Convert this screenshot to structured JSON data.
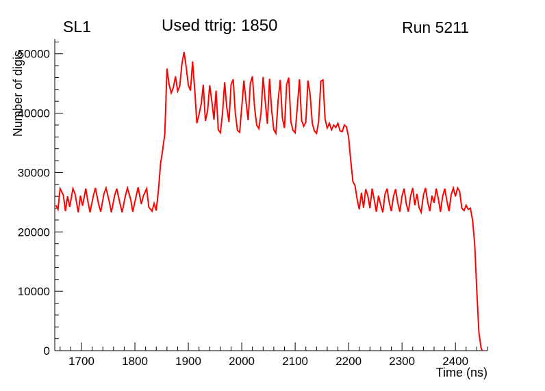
{
  "page": {
    "background": "#ffffff"
  },
  "header": {
    "left_label": "SL1",
    "center_label": "Used ttrig: 1850",
    "right_label": "Run 5211"
  },
  "chart_data": {
    "type": "line",
    "title": "Used ttrig: 1850",
    "xlabel": "Time (ns)",
    "ylabel": "Number of digis",
    "xlim": [
      1650,
      2460
    ],
    "ylim": [
      0,
      52500
    ],
    "x_major_ticks": [
      1700,
      1800,
      1900,
      2000,
      2100,
      2200,
      2300,
      2400
    ],
    "y_major_ticks": [
      0,
      10000,
      20000,
      30000,
      40000,
      50000
    ],
    "x_minor_step": 20,
    "y_minor_step": 2000,
    "grid": false,
    "legend": "none",
    "line_color": "#ff0000",
    "series": [
      {
        "name": "number-of-digis-vs-time",
        "points": [
          [
            1652,
            24500
          ],
          [
            1656,
            23800
          ],
          [
            1660,
            27300
          ],
          [
            1666,
            26200
          ],
          [
            1670,
            23500
          ],
          [
            1674,
            26000
          ],
          [
            1678,
            24200
          ],
          [
            1684,
            27300
          ],
          [
            1688,
            26400
          ],
          [
            1694,
            23300
          ],
          [
            1698,
            26100
          ],
          [
            1702,
            24400
          ],
          [
            1708,
            27300
          ],
          [
            1712,
            25100
          ],
          [
            1716,
            23300
          ],
          [
            1722,
            26000
          ],
          [
            1726,
            27400
          ],
          [
            1732,
            24700
          ],
          [
            1736,
            23400
          ],
          [
            1742,
            26400
          ],
          [
            1746,
            27400
          ],
          [
            1752,
            25100
          ],
          [
            1756,
            23300
          ],
          [
            1762,
            26100
          ],
          [
            1766,
            27300
          ],
          [
            1772,
            24800
          ],
          [
            1776,
            23300
          ],
          [
            1782,
            26000
          ],
          [
            1786,
            27400
          ],
          [
            1792,
            25500
          ],
          [
            1796,
            23400
          ],
          [
            1802,
            25900
          ],
          [
            1806,
            27500
          ],
          [
            1812,
            24700
          ],
          [
            1816,
            26100
          ],
          [
            1822,
            27300
          ],
          [
            1826,
            24200
          ],
          [
            1832,
            23500
          ],
          [
            1836,
            24800
          ],
          [
            1840,
            23600
          ],
          [
            1844,
            27000
          ],
          [
            1848,
            31500
          ],
          [
            1852,
            33800
          ],
          [
            1856,
            36500
          ],
          [
            1860,
            47500
          ],
          [
            1864,
            44800
          ],
          [
            1868,
            43400
          ],
          [
            1872,
            44300
          ],
          [
            1876,
            46200
          ],
          [
            1880,
            43700
          ],
          [
            1884,
            44600
          ],
          [
            1888,
            48300
          ],
          [
            1892,
            50300
          ],
          [
            1896,
            47800
          ],
          [
            1900,
            44700
          ],
          [
            1904,
            43800
          ],
          [
            1908,
            48700
          ],
          [
            1912,
            44000
          ],
          [
            1916,
            38300
          ],
          [
            1920,
            39800
          ],
          [
            1924,
            41500
          ],
          [
            1928,
            44800
          ],
          [
            1932,
            38700
          ],
          [
            1936,
            40400
          ],
          [
            1940,
            44700
          ],
          [
            1944,
            42000
          ],
          [
            1948,
            38900
          ],
          [
            1952,
            43800
          ],
          [
            1956,
            37200
          ],
          [
            1960,
            36700
          ],
          [
            1964,
            40000
          ],
          [
            1968,
            45200
          ],
          [
            1972,
            41000
          ],
          [
            1976,
            38500
          ],
          [
            1980,
            44800
          ],
          [
            1984,
            45700
          ],
          [
            1988,
            40000
          ],
          [
            1992,
            37100
          ],
          [
            1996,
            36800
          ],
          [
            2000,
            41000
          ],
          [
            2004,
            45500
          ],
          [
            2008,
            42000
          ],
          [
            2012,
            38800
          ],
          [
            2016,
            45000
          ],
          [
            2020,
            46200
          ],
          [
            2024,
            41000
          ],
          [
            2028,
            38000
          ],
          [
            2032,
            37400
          ],
          [
            2036,
            40000
          ],
          [
            2040,
            46100
          ],
          [
            2044,
            42000
          ],
          [
            2048,
            38200
          ],
          [
            2052,
            45800
          ],
          [
            2056,
            40500
          ],
          [
            2060,
            37200
          ],
          [
            2064,
            36600
          ],
          [
            2068,
            42000
          ],
          [
            2072,
            45600
          ],
          [
            2076,
            39200
          ],
          [
            2080,
            37500
          ],
          [
            2084,
            44800
          ],
          [
            2088,
            46000
          ],
          [
            2092,
            38500
          ],
          [
            2096,
            37100
          ],
          [
            2100,
            36700
          ],
          [
            2104,
            41000
          ],
          [
            2108,
            45700
          ],
          [
            2112,
            38800
          ],
          [
            2116,
            37800
          ],
          [
            2120,
            38500
          ],
          [
            2124,
            45500
          ],
          [
            2128,
            43100
          ],
          [
            2132,
            38300
          ],
          [
            2136,
            37000
          ],
          [
            2140,
            36600
          ],
          [
            2144,
            38600
          ],
          [
            2148,
            45400
          ],
          [
            2152,
            45600
          ],
          [
            2156,
            39000
          ],
          [
            2160,
            37500
          ],
          [
            2164,
            38300
          ],
          [
            2168,
            37200
          ],
          [
            2172,
            38000
          ],
          [
            2176,
            37600
          ],
          [
            2180,
            38300
          ],
          [
            2184,
            37000
          ],
          [
            2188,
            36900
          ],
          [
            2192,
            38000
          ],
          [
            2196,
            37700
          ],
          [
            2200,
            36000
          ],
          [
            2204,
            32000
          ],
          [
            2208,
            28500
          ],
          [
            2212,
            27800
          ],
          [
            2216,
            25500
          ],
          [
            2220,
            23800
          ],
          [
            2224,
            26600
          ],
          [
            2228,
            24100
          ],
          [
            2232,
            27200
          ],
          [
            2236,
            26100
          ],
          [
            2240,
            24000
          ],
          [
            2244,
            27300
          ],
          [
            2248,
            25400
          ],
          [
            2252,
            23400
          ],
          [
            2256,
            26100
          ],
          [
            2260,
            24600
          ],
          [
            2264,
            23300
          ],
          [
            2268,
            26300
          ],
          [
            2272,
            27300
          ],
          [
            2276,
            25000
          ],
          [
            2280,
            23500
          ],
          [
            2284,
            26000
          ],
          [
            2288,
            27200
          ],
          [
            2292,
            24900
          ],
          [
            2296,
            23400
          ],
          [
            2300,
            26100
          ],
          [
            2304,
            27300
          ],
          [
            2308,
            24700
          ],
          [
            2312,
            23400
          ],
          [
            2316,
            26000
          ],
          [
            2320,
            27400
          ],
          [
            2324,
            24500
          ],
          [
            2328,
            26400
          ],
          [
            2332,
            24100
          ],
          [
            2336,
            23300
          ],
          [
            2340,
            26200
          ],
          [
            2344,
            27400
          ],
          [
            2348,
            25100
          ],
          [
            2352,
            23500
          ],
          [
            2356,
            26100
          ],
          [
            2360,
            24900
          ],
          [
            2364,
            27300
          ],
          [
            2368,
            25600
          ],
          [
            2372,
            23400
          ],
          [
            2376,
            26000
          ],
          [
            2380,
            27300
          ],
          [
            2384,
            25200
          ],
          [
            2388,
            23500
          ],
          [
            2392,
            26200
          ],
          [
            2396,
            27400
          ],
          [
            2400,
            26000
          ],
          [
            2404,
            27400
          ],
          [
            2408,
            26800
          ],
          [
            2412,
            24000
          ],
          [
            2416,
            23600
          ],
          [
            2420,
            24500
          ],
          [
            2424,
            23800
          ],
          [
            2428,
            24000
          ],
          [
            2432,
            22000
          ],
          [
            2436,
            18000
          ],
          [
            2440,
            10000
          ],
          [
            2444,
            3000
          ],
          [
            2448,
            500
          ],
          [
            2450,
            0
          ]
        ]
      }
    ]
  }
}
